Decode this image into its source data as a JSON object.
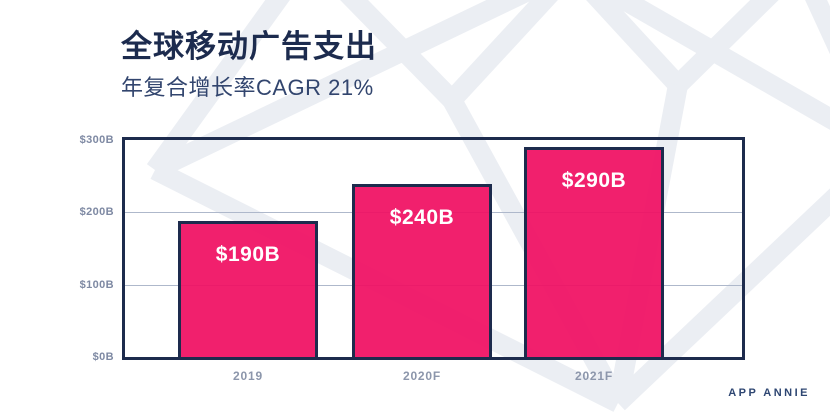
{
  "header": {
    "title": "全球移动广告支出",
    "subtitle": "年复合增长率CAGR 21%"
  },
  "footer": {
    "brand": "APP ANNIE"
  },
  "colors": {
    "bar_fill": "#F00F62",
    "bar_border": "#1D2B4D",
    "axis_border": "#1D2B4D",
    "gridline": "#AEB8CB",
    "title_text": "#1C2B4E",
    "subtitle_text": "#32456E",
    "tick_text": "#7E89A3",
    "watermark": "#EBEEF3",
    "background": "#FFFFFF"
  },
  "chart_data": {
    "type": "bar",
    "title": "全球移动广告支出",
    "subtitle": "年复合增长率CAGR 21%",
    "categories": [
      "2019",
      "2020F",
      "2021F"
    ],
    "values": [
      190,
      240,
      290
    ],
    "value_labels": [
      "$190B",
      "$240B",
      "$290B"
    ],
    "unit": "$B",
    "xlabel": "",
    "ylabel": "",
    "ylim": [
      0,
      300
    ],
    "yticks": [
      {
        "value": 300,
        "label": "$300B"
      },
      {
        "value": 200,
        "label": "$200B"
      },
      {
        "value": 100,
        "label": "$100B"
      },
      {
        "value": 0,
        "label": "$0B"
      }
    ],
    "gridline_values": [
      200,
      100
    ],
    "grid": "horizontal",
    "legend": "none",
    "bar_color": "#F00F62",
    "bar_border_color": "#1D2B4D"
  }
}
